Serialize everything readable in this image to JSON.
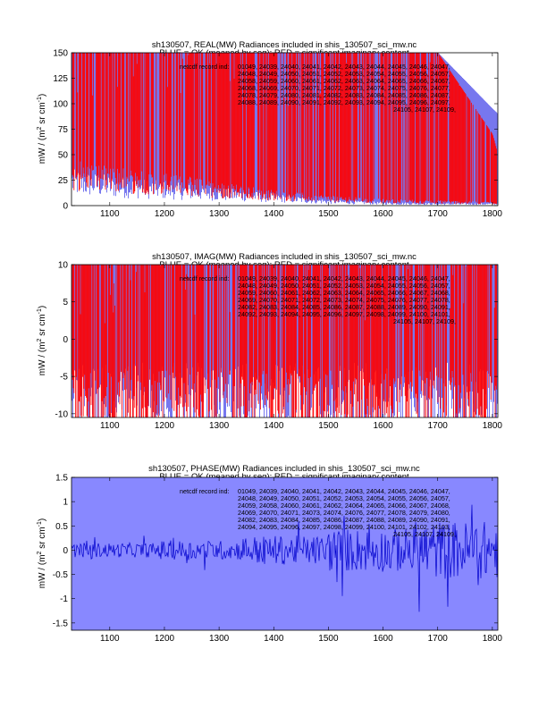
{
  "chart_data": [
    {
      "type": "line",
      "panel": "real",
      "title_line1": "sh130507, REAL(MW) Radiances included in shis_130507_sci_mw.nc",
      "title_line2": "BLUE = OK (meaned by seg); RED = significant imaginary content",
      "ylabel": "mW / (m² sr cm⁻¹)",
      "ylabel_parts": {
        "a": "mW / (m",
        "b": "2",
        "c": " sr cm",
        "d": "-1",
        "e": ")"
      },
      "xlim": [
        1030,
        1810
      ],
      "ylim": [
        0,
        150
      ],
      "xticks": [
        1100,
        1200,
        1300,
        1400,
        1500,
        1600,
        1700,
        1800
      ],
      "xtick_labels": [
        "1100",
        "1200",
        "1300",
        "1400",
        "1500",
        "1600",
        "1700",
        "1800"
      ],
      "yticks": [
        0,
        25,
        50,
        75,
        100,
        125,
        150
      ],
      "ytick_labels": [
        "0",
        "25",
        "50",
        "75",
        "100",
        "125",
        "150"
      ],
      "background_color": "#ffffff",
      "series": [
        {
          "name": "OK (meaned by seg)",
          "color": "#7777ee",
          "x": [
            1030,
            1100,
            1200,
            1300,
            1400,
            1500,
            1600,
            1700,
            1800,
            1810
          ],
          "y_low": [
            30,
            25,
            20,
            15,
            10,
            5,
            3,
            2,
            2,
            2
          ],
          "y_high": [
            150,
            150,
            150,
            150,
            150,
            150,
            150,
            150,
            95,
            90
          ]
        },
        {
          "name": "significant imaginary content",
          "color": "#ff0000",
          "x": [
            1030,
            1100,
            1200,
            1300,
            1400,
            1500,
            1600,
            1700,
            1800,
            1810
          ],
          "y_low": [
            35,
            30,
            25,
            18,
            12,
            8,
            5,
            4,
            3,
            3
          ],
          "y_high": [
            150,
            150,
            150,
            150,
            150,
            150,
            150,
            150,
            70,
            50
          ]
        }
      ],
      "annotation_label": "netcdf record ind: ",
      "annotation_lines": [
        "01049, 24039, 24040, 24041, 24042, 24043, 24044, 24045, 24046, 24047,",
        "24048, 24049, 24050, 24051, 24052, 24053, 24054, 24055, 24056, 24057,",
        "24058, 24059, 24060, 24061, 24062, 24063, 24064, 24065, 24066, 24067,",
        "24068, 24069, 24070, 24071, 24072, 24073, 24074, 24075, 24076, 24077,",
        "24078, 24079, 24080, 24081, 24082, 24083, 24084, 24085, 24086, 24087,",
        "24088, 24089, 24090, 24091, 24092, 24093, 24094, 24095, 24096, 24097,",
        "24105, 24107, 24109,"
      ]
    },
    {
      "type": "line",
      "panel": "imag",
      "title_line1": "sh130507, IMAG(MW) Radiances included in shis_130507_sci_mw.nc",
      "title_line2": "BLUE = OK (meaned by seg); RED = significant imaginary content",
      "ylabel": "mW / (m² sr cm⁻¹)",
      "ylabel_parts": {
        "a": "mW / (m",
        "b": "2",
        "c": " sr cm",
        "d": "-1",
        "e": ")"
      },
      "xlim": [
        1030,
        1810
      ],
      "ylim": [
        -10.5,
        10
      ],
      "xticks": [
        1100,
        1200,
        1300,
        1400,
        1500,
        1600,
        1700,
        1800
      ],
      "xtick_labels": [
        "1100",
        "1200",
        "1300",
        "1400",
        "1500",
        "1600",
        "1700",
        "1800"
      ],
      "yticks": [
        -10,
        -5,
        0,
        5,
        10
      ],
      "ytick_labels": [
        "-10",
        "-5",
        "0",
        "5",
        "10"
      ],
      "background_color": "#ffffff",
      "series": [
        {
          "name": "OK (meaned by seg)",
          "color": "#7777ee",
          "y_low": [
            -10.5
          ],
          "y_high": [
            10
          ]
        },
        {
          "name": "significant imaginary content",
          "color": "#ff0000",
          "y_low": [
            -10.5
          ],
          "y_high": [
            10
          ]
        }
      ],
      "annotation_label": "netcdf record ind: ",
      "annotation_lines": [
        "01049, 24039, 24040, 24041, 24042, 24043, 24044, 24045, 24046, 24047,",
        "24048, 24049, 24050, 24051, 24052, 24053, 24054, 24055, 24056, 24057,",
        "24059, 24060, 24061, 24062, 24063, 24064, 24065, 24066, 24067, 24068,",
        "24069, 24070, 24071, 24072, 24073, 24074, 24075, 24076, 24077, 24078,",
        "24082, 24083, 24084, 24085, 24086, 24087, 24088, 24089, 24090, 24091,",
        "24092, 24093, 24094, 24095, 24096, 24097, 24098, 24099, 24100, 24101,",
        "24105, 24107, 24109,"
      ]
    },
    {
      "type": "line",
      "panel": "phase",
      "title_line1": "sh130507, PHASE(MW) Radiances included in shis_130507_sci_mw.nc",
      "title_line2": "BLUE = OK (meaned by seg); RED = significant imaginary content",
      "ylabel": "mW / (m² sr cm⁻¹)",
      "ylabel_parts": {
        "a": "mW / (m",
        "b": "2",
        "c": " sr cm",
        "d": "-1",
        "e": ")"
      },
      "xlim": [
        1030,
        1810
      ],
      "ylim": [
        -1.65,
        1.5
      ],
      "xticks": [
        1100,
        1200,
        1300,
        1400,
        1500,
        1600,
        1700,
        1800
      ],
      "xtick_labels": [
        "1100",
        "1200",
        "1300",
        "1400",
        "1500",
        "1600",
        "1700",
        "1800"
      ],
      "yticks": [
        -1.5,
        -1,
        -0.5,
        0,
        0.5,
        1,
        1.5
      ],
      "ytick_labels": [
        "-1.5",
        "-1",
        "-0.5",
        "0",
        "0.5",
        "1",
        "1.5"
      ],
      "background_color": "#8888ff",
      "series": [
        {
          "name": "phase",
          "color": "#0000cc",
          "y_center": 0,
          "noise_amplitude": [
            0.15,
            0.2,
            0.3,
            0.45,
            0.6
          ]
        }
      ],
      "annotation_label": "netcdf record ind: ",
      "annotation_lines": [
        "01049, 24039, 24040, 24041, 24042, 24043, 24044, 24045, 24046, 24047,",
        "24048, 24049, 24050, 24051, 24052, 24053, 24054, 24055, 24056, 24057,",
        "24059, 24058, 24060, 24061, 24062, 24064, 24065, 24066, 24067, 24068,",
        "24069, 24070, 24071, 24073, 24074, 24076, 24077, 24078, 24079, 24080,",
        "24082, 24083, 24084, 24085, 24086, 24087, 24088, 24089, 24090, 24091,",
        "24094, 24095, 24096, 24097, 24098, 24099, 24100, 24101, 24102, 24103,",
        "24105, 24107, 24109,"
      ]
    }
  ]
}
